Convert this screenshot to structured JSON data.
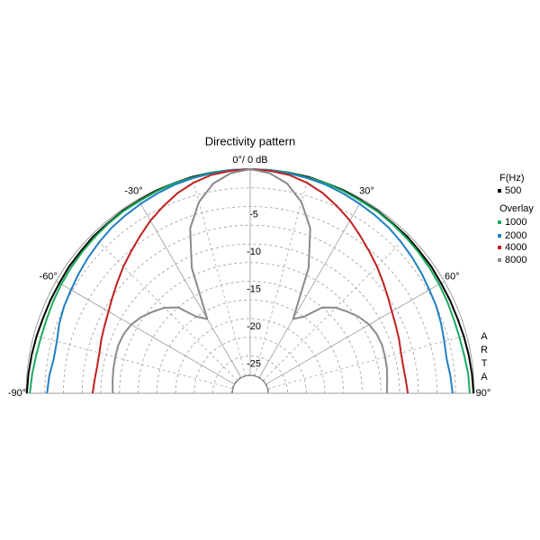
{
  "chart_data": {
    "type": "polar",
    "title": "Directivity pattern",
    "angles": [
      -90,
      -85,
      -80,
      -75,
      -70,
      -65,
      -60,
      -55,
      -50,
      -45,
      -40,
      -35,
      -30,
      -25,
      -20,
      -15,
      -10,
      -5,
      0,
      5,
      10,
      15,
      20,
      25,
      30,
      35,
      40,
      45,
      50,
      55,
      60,
      65,
      70,
      75,
      80,
      85,
      90
    ],
    "alim": [
      -90,
      90
    ],
    "aticks": [
      {
        "value": -90,
        "label": "-90°"
      },
      {
        "value": -60,
        "label": "-60°"
      },
      {
        "value": -30,
        "label": "-30°"
      },
      {
        "value": 0,
        "label": "0°/ 0 dB"
      },
      {
        "value": 30,
        "label": "30°"
      },
      {
        "value": 60,
        "label": "60°"
      },
      {
        "value": 90,
        "label": "90°"
      }
    ],
    "rlim": [
      -30,
      0
    ],
    "rticks": [
      -5,
      -10,
      -15,
      -20,
      -25
    ],
    "legend_title": "F(Hz)",
    "overlay_title": "Overlay",
    "watermark": "ARTA",
    "series": [
      {
        "name": "500",
        "color": "#000000",
        "values": [
          -0.1,
          -0.2,
          -0.3,
          -0.4,
          -0.5,
          -0.5,
          -0.5,
          -0.4,
          -0.4,
          -0.3,
          -0.3,
          -0.2,
          -0.2,
          -0.1,
          -0.1,
          0,
          0,
          0,
          0,
          0,
          0,
          0,
          -0.1,
          -0.1,
          -0.2,
          -0.2,
          -0.3,
          -0.3,
          -0.4,
          -0.4,
          -0.5,
          -0.5,
          -0.5,
          -0.4,
          -0.3,
          -0.2,
          -0.1
        ]
      },
      {
        "name": "1000",
        "color": "#1aab5c",
        "values": [
          -0.5,
          -0.7,
          -0.9,
          -1.0,
          -1.0,
          -0.9,
          -0.8,
          -0.7,
          -0.6,
          -0.5,
          -0.4,
          -0.3,
          -0.3,
          -0.2,
          -0.1,
          -0.1,
          0,
          0,
          0,
          0,
          0,
          -0.1,
          -0.1,
          -0.2,
          -0.3,
          -0.3,
          -0.4,
          -0.5,
          -0.6,
          -0.7,
          -0.8,
          -0.9,
          -1.0,
          -1.0,
          -0.9,
          -0.7,
          -0.6
        ]
      },
      {
        "name": "2000",
        "color": "#1f7fc4",
        "values": [
          -2.8,
          -3.0,
          -3.3,
          -3.2,
          -2.8,
          -2.5,
          -2.3,
          -2.0,
          -1.7,
          -1.4,
          -1.1,
          -0.9,
          -0.7,
          -0.5,
          -0.3,
          -0.2,
          -0.1,
          0,
          0,
          0,
          -0.1,
          -0.2,
          -0.3,
          -0.5,
          -0.7,
          -0.9,
          -1.1,
          -1.4,
          -1.7,
          -2.0,
          -2.3,
          -2.5,
          -2.8,
          -3.1,
          -3.3,
          -3.1,
          -2.9
        ]
      },
      {
        "name": "4000",
        "color": "#c0201e",
        "values": [
          -8.9,
          -9.1,
          -9.2,
          -9.1,
          -8.8,
          -8.5,
          -8.1,
          -7.5,
          -6.8,
          -6.0,
          -5.2,
          -4.3,
          -3.3,
          -2.4,
          -1.5,
          -0.8,
          -0.3,
          -0.1,
          0,
          -0.1,
          -0.3,
          -0.8,
          -1.5,
          -2.4,
          -3.3,
          -4.3,
          -5.2,
          -6.0,
          -6.8,
          -7.5,
          -8.1,
          -8.5,
          -8.8,
          -9.1,
          -9.2,
          -9.1,
          -8.9
        ]
      },
      {
        "name": "8000",
        "color": "#8a8a8a",
        "values": [
          -11.6,
          -11.5,
          -11.4,
          -11.3,
          -11.2,
          -11.3,
          -11.6,
          -12.2,
          -13.0,
          -13.8,
          -15.0,
          -17.5,
          -18.5,
          -11.5,
          -6.5,
          -3.5,
          -1.5,
          -0.4,
          0,
          -0.4,
          -1.5,
          -3.5,
          -6.5,
          -11.5,
          -18.5,
          -17.5,
          -15.0,
          -13.8,
          -13.0,
          -12.2,
          -11.6,
          -11.3,
          -11.2,
          -11.3,
          -11.4,
          -11.6,
          -11.7
        ]
      }
    ]
  }
}
